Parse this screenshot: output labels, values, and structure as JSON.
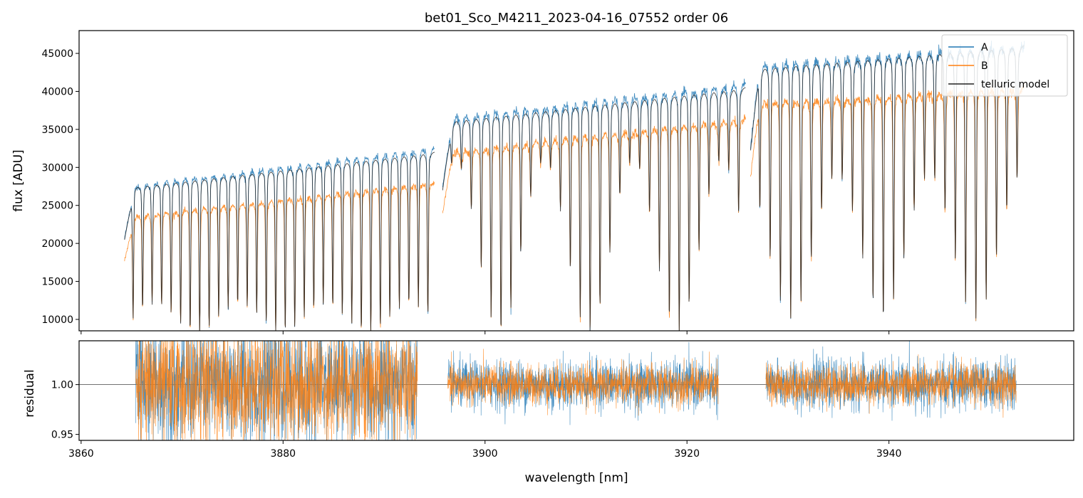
{
  "chart_data": [
    {
      "type": "line",
      "panel": "top",
      "title": "bet01_Sco_M4211_2023-04-16_07552  order 06",
      "xlabel": "",
      "ylabel": "flux [ADU]",
      "xlim": [
        3859.8,
        3958.3
      ],
      "ylim": [
        8500,
        48000
      ],
      "yticks": [
        10000,
        15000,
        20000,
        25000,
        30000,
        35000,
        40000,
        45000
      ],
      "xticks": [
        3860,
        3880,
        3900,
        3920,
        3940
      ],
      "legend": {
        "placement": "top-right",
        "entries": [
          {
            "label": "A",
            "color": "#1f77b4"
          },
          {
            "label": "B",
            "color": "#ff7f0e"
          },
          {
            "label": "telluric model",
            "color": "#222222"
          }
        ]
      },
      "segments": [
        {
          "x_range": [
            3864.3,
            3895.0
          ],
          "n_lines": 32,
          "series": [
            {
              "name": "A",
              "continuum_start": 27500,
              "continuum_end": 32500
            },
            {
              "name": "B",
              "continuum_start": 23500,
              "continuum_end": 28000
            },
            {
              "name": "telluric model",
              "continuum_start": 27300,
              "continuum_end": 32000
            }
          ],
          "line_depth_range": [
            8500,
            15000
          ]
        },
        {
          "x_range": [
            3895.8,
            3925.8
          ],
          "n_lines": 30,
          "series": [
            {
              "name": "A",
              "continuum_start": 36500,
              "continuum_end": 41000
            },
            {
              "name": "B",
              "continuum_start": 32000,
              "continuum_end": 36500
            },
            {
              "name": "telluric model",
              "continuum_start": 36000,
              "continuum_end": 40500
            }
          ],
          "line_depth_range": [
            8500,
            32000
          ]
        },
        {
          "x_range": [
            3926.3,
            3953.4
          ],
          "n_lines": 26,
          "series": [
            {
              "name": "A",
              "continuum_start": 43500,
              "continuum_end": 46000
            },
            {
              "name": "B",
              "continuum_start": 38500,
              "continuum_end": 40500
            },
            {
              "name": "telluric model",
              "continuum_start": 43000,
              "continuum_end": 46000
            }
          ],
          "line_depth_range": [
            10500,
            30000
          ]
        }
      ]
    },
    {
      "type": "line",
      "panel": "bottom",
      "title": "",
      "xlabel": "wavelength [nm]",
      "ylabel": "residual",
      "xlim": [
        3859.8,
        3958.3
      ],
      "ylim": [
        0.944,
        1.044
      ],
      "yticks": [
        0.95,
        1.0
      ],
      "ytick_labels": [
        "0.95",
        "1.00"
      ],
      "xticks": [
        3860,
        3880,
        3900,
        3920,
        3940
      ],
      "reference_line": 1.0,
      "segments": [
        {
          "x_range": [
            3865.4,
            3893.3
          ],
          "A_scatter": 0.03,
          "B_scatter": 0.03
        },
        {
          "x_range": [
            3896.3,
            3923.1
          ],
          "A_scatter": 0.012,
          "B_scatter": 0.01
        },
        {
          "x_range": [
            3927.8,
            3952.6
          ],
          "A_scatter": 0.012,
          "B_scatter": 0.01
        }
      ]
    }
  ]
}
